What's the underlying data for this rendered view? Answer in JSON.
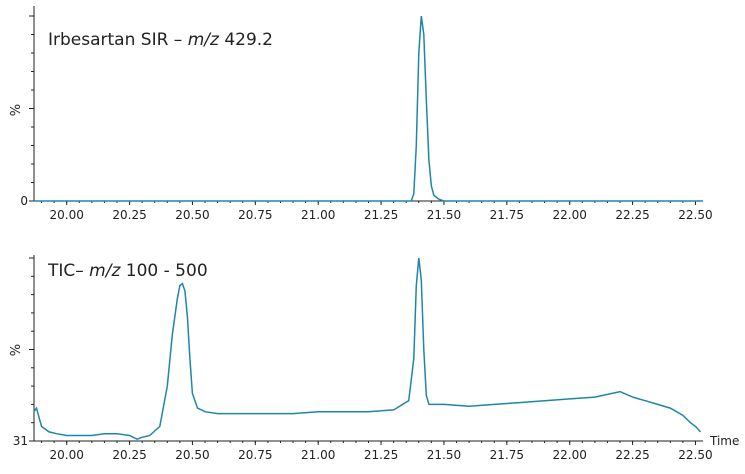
{
  "chart_data": [
    {
      "type": "line",
      "title_text": "Irbesartan SIR – ",
      "title_italic": "m/z",
      "title_tail": " 429.2",
      "ylabel": "%",
      "y_zero_label": "0",
      "xlabel": "",
      "xlim": [
        19.87,
        22.53
      ],
      "ylim": [
        0,
        100
      ],
      "grid": false,
      "x_ticks": [
        "20.00",
        "20.25",
        "20.50",
        "20.75",
        "21.00",
        "21.25",
        "21.50",
        "21.75",
        "22.00",
        "22.25",
        "22.50"
      ],
      "color": "#1f86a8",
      "series": [
        {
          "x": [
            19.87,
            21.3,
            21.37,
            21.38,
            21.39,
            21.4,
            21.41,
            21.42,
            21.43,
            21.44,
            21.45,
            21.46,
            21.48,
            21.5,
            21.55,
            22.53
          ],
          "y": [
            0,
            0,
            0,
            4,
            30,
            80,
            100,
            90,
            55,
            22,
            8,
            3,
            1,
            0,
            0,
            0
          ]
        }
      ]
    },
    {
      "type": "line",
      "title_text": "TIC– ",
      "title_italic": "m/z",
      "title_tail": " 100 - 500",
      "ylabel": "%",
      "y_zero_label": "31",
      "xlabel": "Time",
      "xlim": [
        19.87,
        22.53
      ],
      "ylim": [
        0,
        100
      ],
      "grid": false,
      "x_ticks": [
        "20.00",
        "20.25",
        "20.50",
        "20.75",
        "21.00",
        "21.25",
        "21.50",
        "21.75",
        "22.00",
        "22.25",
        "22.50"
      ],
      "color": "#1f86a8",
      "series": [
        {
          "x": [
            19.87,
            19.88,
            19.9,
            19.93,
            19.96,
            20.0,
            20.05,
            20.1,
            20.15,
            20.2,
            20.25,
            20.28,
            20.3,
            20.33,
            20.37,
            20.4,
            20.42,
            20.44,
            20.45,
            20.46,
            20.47,
            20.48,
            20.49,
            20.5,
            20.52,
            20.55,
            20.6,
            20.7,
            20.8,
            20.9,
            21.0,
            21.1,
            21.2,
            21.3,
            21.36,
            21.38,
            21.39,
            21.4,
            21.41,
            21.42,
            21.43,
            21.44,
            21.46,
            21.5,
            21.6,
            21.7,
            21.8,
            21.9,
            22.0,
            22.1,
            22.2,
            22.25,
            22.3,
            22.35,
            22.4,
            22.45,
            22.48,
            22.5,
            22.52
          ],
          "y": [
            16,
            18,
            8,
            5,
            4,
            3,
            3,
            3,
            4,
            4,
            3,
            1,
            2,
            3,
            8,
            30,
            58,
            78,
            85,
            86,
            82,
            68,
            45,
            26,
            18,
            16,
            15,
            15,
            15,
            15,
            16,
            16,
            16,
            17,
            22,
            45,
            85,
            100,
            88,
            50,
            25,
            20,
            20,
            20,
            19,
            20,
            21,
            22,
            23,
            24,
            27,
            24,
            22,
            20,
            18,
            14,
            10,
            8,
            5
          ]
        }
      ]
    }
  ]
}
